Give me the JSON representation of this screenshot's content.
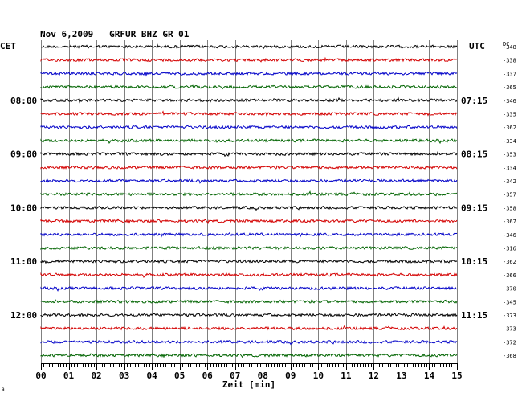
{
  "chart_data": {
    "type": "line",
    "title": "Nov 6,2009   GRFUR BHZ GR 01",
    "left_axis_label": "CET",
    "right_axis_label": "UTC",
    "dc_label": "DC",
    "xlabel": "Zeit [min]",
    "x_ticks": [
      "00",
      "01",
      "02",
      "03",
      "04",
      "05",
      "06",
      "07",
      "08",
      "09",
      "10",
      "11",
      "12",
      "13",
      "14",
      "15"
    ],
    "xlim": [
      0,
      15
    ],
    "trace_colors": [
      "#000000",
      "#d40000",
      "#0000c8",
      "#006400"
    ],
    "cet_hour_labels": [
      {
        "trace": 4,
        "label": "08:00"
      },
      {
        "trace": 8,
        "label": "09:00"
      },
      {
        "trace": 12,
        "label": "10:00"
      },
      {
        "trace": 16,
        "label": "11:00"
      },
      {
        "trace": 20,
        "label": "12:00"
      }
    ],
    "utc_labels": [
      {
        "trace": 4,
        "label": "07:15"
      },
      {
        "trace": 8,
        "label": "08:15"
      },
      {
        "trace": 12,
        "label": "09:15"
      },
      {
        "trace": 16,
        "label": "10:15"
      },
      {
        "trace": 20,
        "label": "11:15"
      }
    ],
    "dc_offsets": [
      "-348",
      "-338",
      "-337",
      "-365",
      "-346",
      "-335",
      "-362",
      "-334",
      "-353",
      "-334",
      "-342",
      "-357",
      "-358",
      "-367",
      "-346",
      "-316",
      "-362",
      "-366",
      "-370",
      "-345",
      "-373",
      "-373",
      "-372",
      "-368"
    ],
    "grid": true
  }
}
